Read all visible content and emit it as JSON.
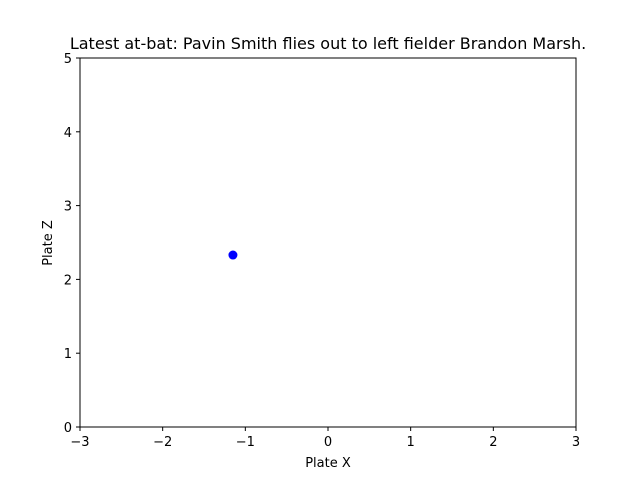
{
  "chart_data": {
    "type": "scatter",
    "title": "Latest at-bat: Pavin Smith flies out to left fielder Brandon Marsh.",
    "xlabel": "Plate X",
    "ylabel": "Plate Z",
    "xlim": [
      -3,
      3
    ],
    "ylim": [
      0,
      5
    ],
    "x_ticks": [
      -3,
      -2,
      -1,
      0,
      1,
      2,
      3
    ],
    "y_ticks": [
      0,
      1,
      2,
      3,
      4,
      5
    ],
    "x_tick_labels": [
      "−3",
      "−2",
      "−1",
      "0",
      "1",
      "2",
      "3"
    ],
    "y_tick_labels": [
      "0",
      "1",
      "2",
      "3",
      "4",
      "5"
    ],
    "grid": false,
    "series": [
      {
        "color": "#0000ff",
        "points": [
          {
            "x": -1.15,
            "y": 2.33
          }
        ]
      }
    ]
  }
}
